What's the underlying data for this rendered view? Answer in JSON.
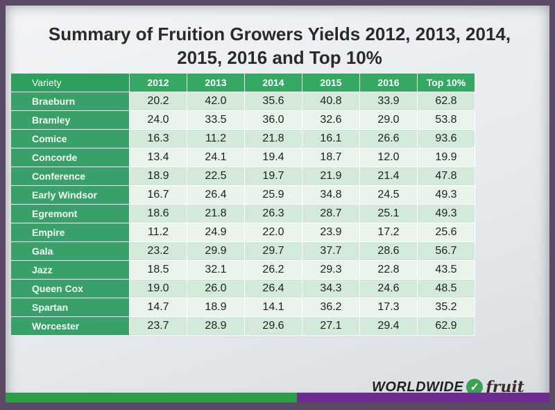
{
  "title": "Summary of Fruition Growers Yields 2012, 2013, 2014, 2015, 2016 and Top 10%",
  "table": {
    "headers": [
      "Variety",
      "2012",
      "2013",
      "2014",
      "2015",
      "2016",
      "Top 10%"
    ],
    "rows": [
      [
        "Braeburn",
        "20.2",
        "42.0",
        "35.6",
        "40.8",
        "33.9",
        "62.8"
      ],
      [
        "Bramley",
        "24.0",
        "33.5",
        "36.0",
        "32.6",
        "29.0",
        "53.8"
      ],
      [
        "Comice",
        "16.3",
        "11.2",
        "21.8",
        "16.1",
        "26.6",
        "93.6"
      ],
      [
        "Concorde",
        "13.4",
        "24.1",
        "19.4",
        "18.7",
        "12.0",
        "19.9"
      ],
      [
        "Conference",
        "18.9",
        "22.5",
        "19.7",
        "21.9",
        "21.4",
        "47.8"
      ],
      [
        "Early Windsor",
        "16.7",
        "26.4",
        "25.9",
        "34.8",
        "24.5",
        "49.3"
      ],
      [
        "Egremont",
        "18.6",
        "21.8",
        "26.3",
        "28.7",
        "25.1",
        "49.3"
      ],
      [
        "Empire",
        "11.2",
        "24.9",
        "22.0",
        "23.9",
        "17.2",
        "25.6"
      ],
      [
        "Gala",
        "23.2",
        "29.9",
        "29.7",
        "37.7",
        "28.6",
        "56.7"
      ],
      [
        "Jazz",
        "18.5",
        "32.1",
        "26.2",
        "29.3",
        "22.8",
        "43.5"
      ],
      [
        "Queen Cox",
        "19.0",
        "26.0",
        "26.4",
        "34.3",
        "24.6",
        "48.5"
      ],
      [
        "Spartan",
        "14.7",
        "18.9",
        "14.1",
        "36.2",
        "17.3",
        "35.2"
      ],
      [
        "Worcester",
        "23.7",
        "28.9",
        "29.6",
        "27.1",
        "29.4",
        "62.9"
      ]
    ]
  },
  "logo": {
    "text_main": "WORLDWIDE",
    "check_glyph": "✓",
    "text_script": "fruit",
    "colors": {
      "green": "#3aa052",
      "purple": "#6b2c8e"
    }
  }
}
